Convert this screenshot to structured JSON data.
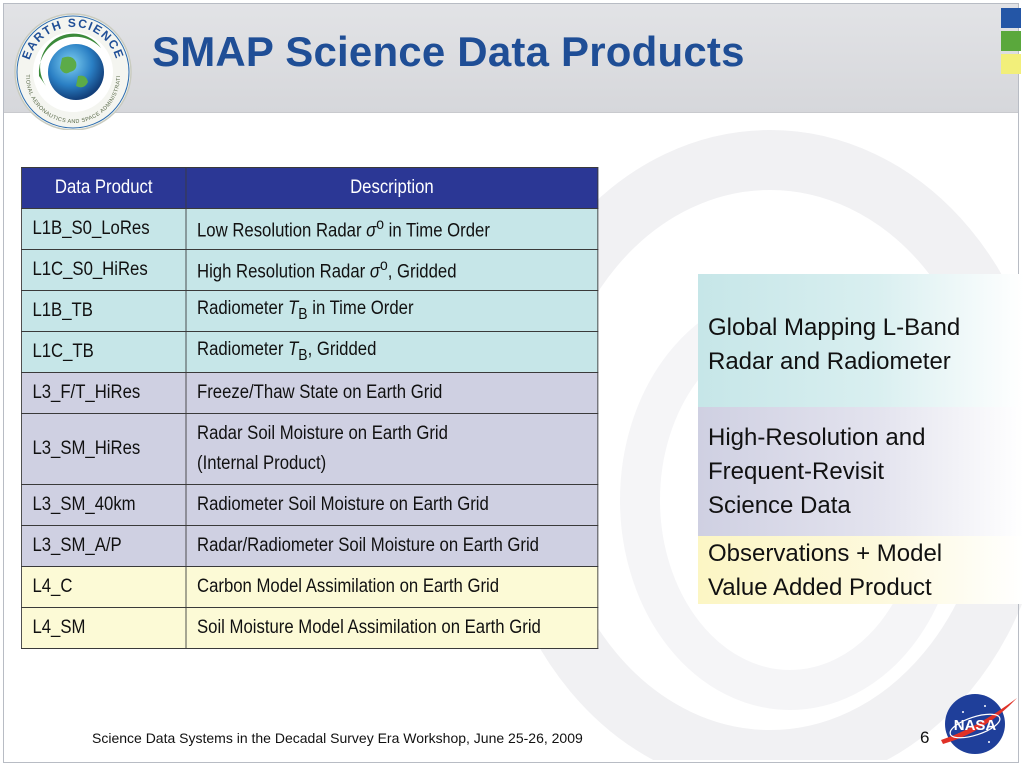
{
  "slide": {
    "title": "SMAP Science Data Products",
    "logo_text": "EARTH SCIENCE",
    "logo_subtext": "NATIONAL AERONAUTICS AND SPACE ADMINISTRATION",
    "nasa_logo_text": "NASA",
    "footer": "Science Data Systems in the Decadal Survey Era Workshop, June 25-26, 2009",
    "page_number": "6",
    "accent_colors": {
      "title": "#1f4e96",
      "header_row": "#2b3795",
      "cyan": "#c6e6e8",
      "lavender": "#cfd0e2",
      "yellow": "#fcfad6"
    }
  },
  "table": {
    "headers": [
      "Data Product",
      "Description"
    ],
    "rows": [
      {
        "product": "L1B_S0_LoRes",
        "pre": "Low Resolution Radar ",
        "sym": "σ",
        "sup": "o",
        "sub": "",
        "post": " in Time Order"
      },
      {
        "product": "L1C_S0_HiRes",
        "pre": "High Resolution Radar ",
        "sym": "σ",
        "sup": "o",
        "sub": "",
        "post": ", Gridded"
      },
      {
        "product": "L1B_TB",
        "pre": "Radiometer ",
        "sym": "T",
        "sup": "",
        "sub": "B",
        "post": " in Time Order"
      },
      {
        "product": "L1C_TB",
        "pre": "Radiometer ",
        "sym": "T",
        "sup": "",
        "sub": "B",
        "post": ", Gridded"
      },
      {
        "product": "L3_F/T_HiRes",
        "line1": "Freeze/Thaw State on Earth Grid"
      },
      {
        "product": "L3_SM_HiRes",
        "line1": "Radar Soil Moisture on Earth Grid",
        "line2": "(Internal Product)"
      },
      {
        "product": "L3_SM_40km",
        "line1": "Radiometer Soil Moisture on Earth Grid"
      },
      {
        "product": "L3_SM_A/P",
        "line1": "Radar/Radiometer Soil Moisture on Earth Grid"
      },
      {
        "product": "L4_C",
        "line1": "Carbon Model Assimilation on Earth Grid"
      },
      {
        "product": "L4_SM",
        "line1": "Soil Moisture Model Assimilation on Earth Grid"
      }
    ]
  },
  "side_boxes": [
    {
      "lines": [
        "Global Mapping L-Band",
        "Radar and Radiometer"
      ]
    },
    {
      "lines": [
        "High-Resolution and",
        "Frequent-Revisit",
        "Science Data"
      ]
    },
    {
      "lines": [
        "Observations + Model",
        "Value Added Product"
      ]
    }
  ]
}
